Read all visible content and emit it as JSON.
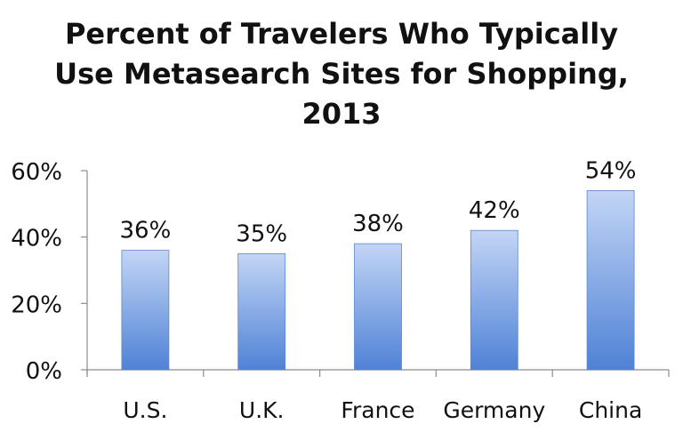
{
  "chart_data": {
    "type": "bar",
    "title_lines": [
      "Percent of Travelers Who Typically",
      "Use Metasearch Sites for Shopping,",
      "2013"
    ],
    "categories": [
      "U.S.",
      "U.K.",
      "France",
      "Germany",
      "China"
    ],
    "values": [
      36,
      35,
      38,
      42,
      54
    ],
    "value_labels": [
      "36%",
      "35%",
      "38%",
      "42%",
      "54%"
    ],
    "y_ticks": [
      0,
      20,
      40,
      60
    ],
    "y_tick_labels": [
      "0%",
      "20%",
      "40%",
      "60%"
    ],
    "ylim": [
      0,
      60
    ],
    "grid": false,
    "legend": "none",
    "bar_color_top": "#c3d5f5",
    "bar_color_bottom": "#4f82d6"
  }
}
